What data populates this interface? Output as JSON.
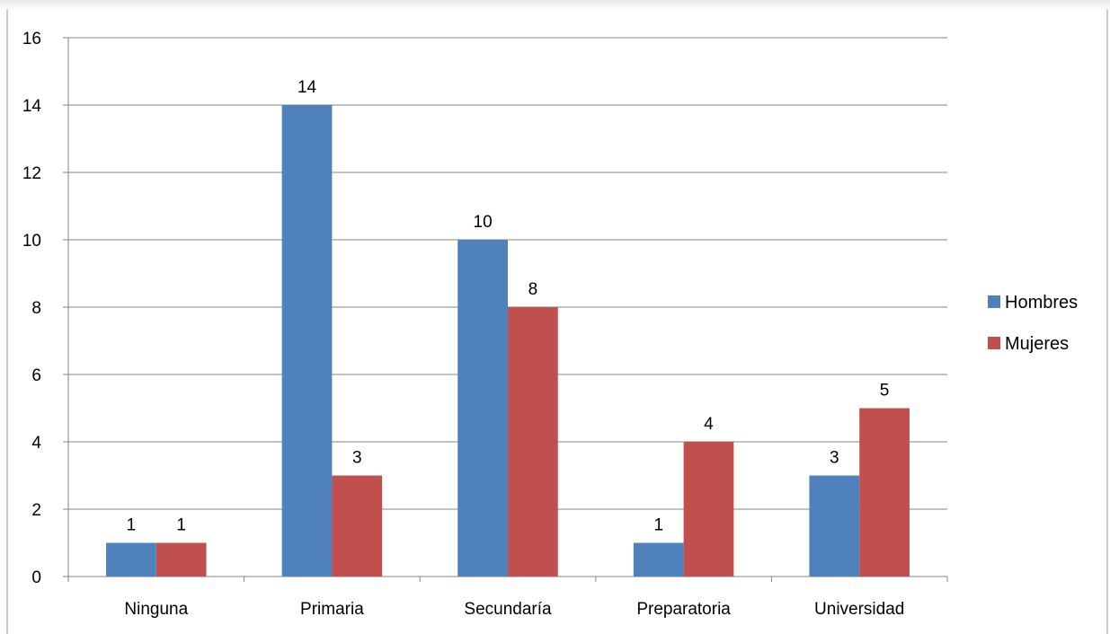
{
  "chart_data": {
    "type": "bar",
    "title": "",
    "xlabel": "",
    "ylabel": "",
    "categories": [
      "Ninguna",
      "Primaria",
      "Secundaría",
      "Preparatoria",
      "Universidad"
    ],
    "series": [
      {
        "name": "Hombres",
        "values": [
          1,
          14,
          10,
          1,
          3
        ],
        "color": "#4F81BD"
      },
      {
        "name": "Mujeres",
        "values": [
          1,
          3,
          8,
          4,
          5
        ],
        "color": "#C0504D"
      }
    ],
    "ylim": [
      0,
      16
    ],
    "yticks": [
      0,
      2,
      4,
      6,
      8,
      10,
      12,
      14,
      16
    ],
    "grid": true,
    "data_labels": true,
    "legend_position": "right"
  }
}
